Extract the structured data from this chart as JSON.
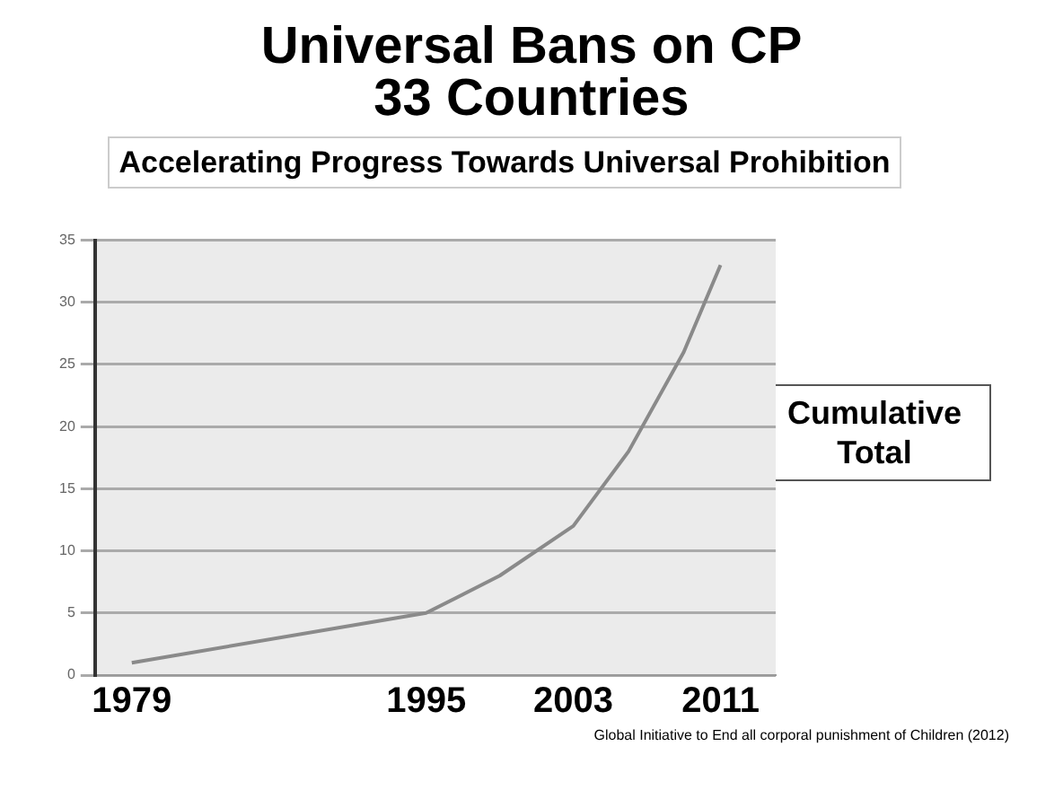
{
  "chart_data": {
    "type": "line",
    "title": "Universal Bans on CP",
    "subtitle": "33 Countries",
    "annotations": [
      "Accelerating Progress Towards Universal Prohibition",
      "Cumulative Total",
      "Global Initiative to End all corporal punishment of Children (2012)"
    ],
    "x": [
      1979,
      1995,
      1999,
      2003,
      2006,
      2009,
      2011
    ],
    "series": [
      {
        "color": "#8a8a8a",
        "values": [
          1,
          5,
          8,
          12,
          18,
          26,
          33
        ]
      }
    ],
    "xlim": [
      1977,
      2014
    ],
    "xticks": [
      1979,
      1995,
      2003,
      2011
    ],
    "ylim": [
      0,
      35
    ],
    "yticks": [
      0,
      5,
      10,
      15,
      20,
      25,
      30,
      35
    ],
    "grid": "y",
    "legend": false,
    "marker": "none",
    "line_style": "solid"
  }
}
